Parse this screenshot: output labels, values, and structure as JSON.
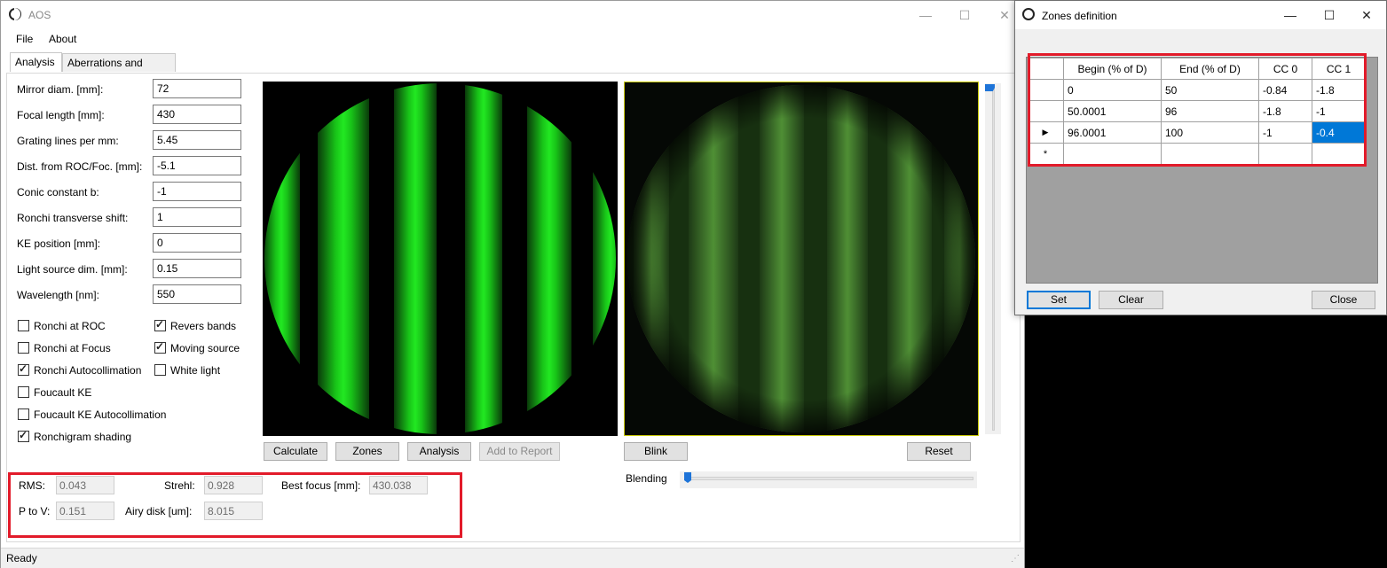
{
  "app": {
    "title": "AOS"
  },
  "menu": [
    "File",
    "About"
  ],
  "tabs": [
    "Analysis",
    "Aberrations and Zones"
  ],
  "fields": [
    {
      "label": "Mirror diam. [mm]:",
      "value": "72"
    },
    {
      "label": "Focal length [mm]:",
      "value": "430"
    },
    {
      "label": "Grating lines per mm:",
      "value": "5.45"
    },
    {
      "label": "Dist. from ROC/Foc. [mm]:",
      "value": "-5.1"
    },
    {
      "label": "Conic constant b:",
      "value": "-1"
    },
    {
      "label": "Ronchi transverse shift:",
      "value": "1"
    },
    {
      "label": "KE position [mm]:",
      "value": "0"
    },
    {
      "label": "Light source dim. [mm]:",
      "value": "0.15"
    },
    {
      "label": "Wavelength [nm]:",
      "value": "550"
    }
  ],
  "checkboxes_left": [
    {
      "label": "Ronchi at ROC",
      "checked": false
    },
    {
      "label": "Ronchi at Focus",
      "checked": false
    },
    {
      "label": "Ronchi Autocollimation",
      "checked": true
    },
    {
      "label": "Foucault KE",
      "checked": false
    },
    {
      "label": "Foucault KE Autocollimation",
      "checked": false
    },
    {
      "label": "Ronchigram shading",
      "checked": true
    }
  ],
  "checkboxes_right": [
    {
      "label": "Revers bands",
      "checked": true
    },
    {
      "label": "Moving source",
      "checked": true
    },
    {
      "label": "White light",
      "checked": false
    }
  ],
  "buttons": {
    "calculate": "Calculate",
    "zones": "Zones",
    "analysis": "Analysis",
    "add_to_report": "Add to Report",
    "blink": "Blink",
    "reset": "Reset"
  },
  "blending_label": "Blending",
  "blending_value": 0.0,
  "vertical_slider_value": 0.0,
  "results": {
    "rms_label": "RMS:",
    "rms": "0.043",
    "strehl_label": "Strehl:",
    "strehl": "0.928",
    "best_focus_label": "Best focus [mm]:",
    "best_focus": "430.038",
    "ptov_label": "P to V:",
    "ptov": "0.151",
    "airy_label": "Airy disk [um]:",
    "airy": "8.015"
  },
  "status": "Ready",
  "zones_window": {
    "title": "Zones definition",
    "columns": [
      "Begin (% of D)",
      "End (% of D)",
      "CC 0",
      "CC 1"
    ],
    "rows": [
      [
        "0",
        "50",
        "-0.84",
        "-1.8"
      ],
      [
        "50.0001",
        "96",
        "-1.8",
        "-1"
      ],
      [
        "96.0001",
        "100",
        "-1",
        "-0.4"
      ]
    ],
    "buttons": {
      "set": "Set",
      "clear": "Clear",
      "close": "Close"
    }
  },
  "colors": {
    "accent": "#0078d7",
    "highlight": "#e21b2a",
    "band_green": "#1edc1e"
  }
}
